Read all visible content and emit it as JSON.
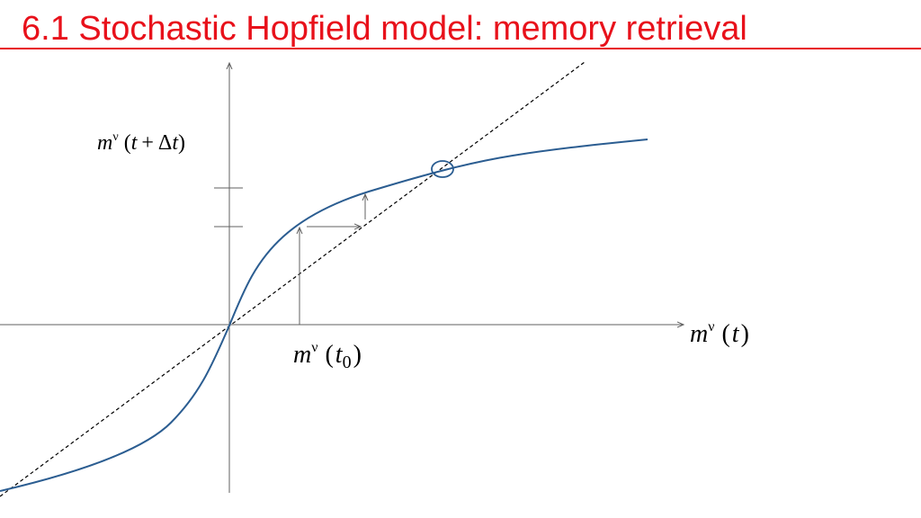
{
  "title": "6.1 Stochastic Hopfield model: memory retrieval",
  "colors": {
    "title": "#e8111b",
    "curve": "#2b5d91",
    "axes": "#606060",
    "dashed_line": "#000000"
  },
  "labels": {
    "y_axis": {
      "var": "m",
      "sup": "ν",
      "open": "(",
      "t": "t",
      "plus": "+",
      "delta": "Δ",
      "t2": "t",
      "close": ")"
    },
    "x_axis": {
      "var": "m",
      "sup": "ν",
      "open": "(",
      "t": "t",
      "close": ")"
    },
    "x0": {
      "var": "m",
      "sup": "ν",
      "open": "(",
      "t": "t",
      "sub": "0",
      "close": ")"
    }
  },
  "elements": {
    "curve": "sigmoid gain function",
    "diagonal": "dashed identity line",
    "fixed_point": "circled intersection"
  }
}
